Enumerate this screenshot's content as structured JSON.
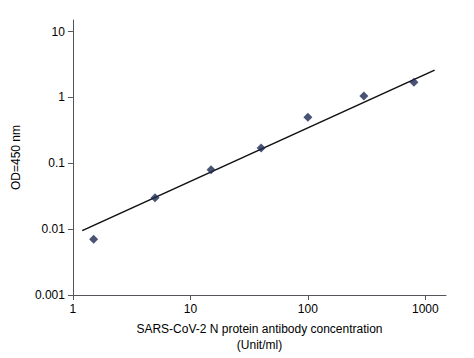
{
  "chart_data": {
    "type": "scatter",
    "xlabel": "SARS-CoV-2 N protein antibody concentration\n(Unit/ml)",
    "ylabel": "OD=450 nm",
    "series": [
      {
        "type": "scatter",
        "marker": "diamond",
        "color": "#1c2951",
        "x": [
          1.5,
          5,
          15,
          40,
          100,
          300,
          800
        ],
        "values": [
          0.007,
          0.03,
          0.08,
          0.17,
          0.5,
          1.05,
          1.7
        ]
      },
      {
        "type": "line",
        "color": "#111111",
        "x": [
          1.2,
          1200
        ],
        "values": [
          0.0095,
          2.6
        ]
      }
    ],
    "log": true,
    "xlim": [
      1,
      1500
    ],
    "ylim": [
      0.001,
      15
    ],
    "xticks": [
      1,
      10,
      100,
      1000
    ],
    "yticks": [
      0.001,
      0.01,
      0.1,
      1,
      10
    ],
    "grid": false
  }
}
